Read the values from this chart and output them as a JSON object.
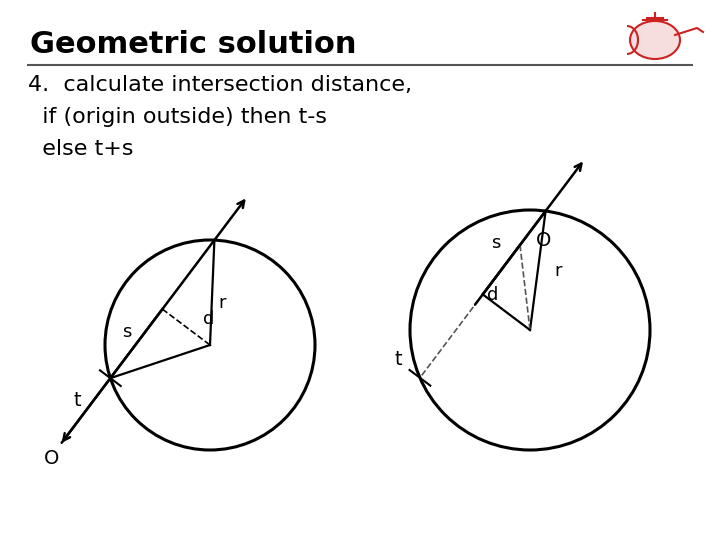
{
  "title": "Geometric solution",
  "subtitle_lines": [
    "4.  calculate intersection distance,",
    "  if (origin outside) then t-s",
    "  else t+s"
  ],
  "background_color": "#ffffff",
  "title_fontsize": 22,
  "subtitle_fontsize": 16,
  "line_color": "#555555"
}
